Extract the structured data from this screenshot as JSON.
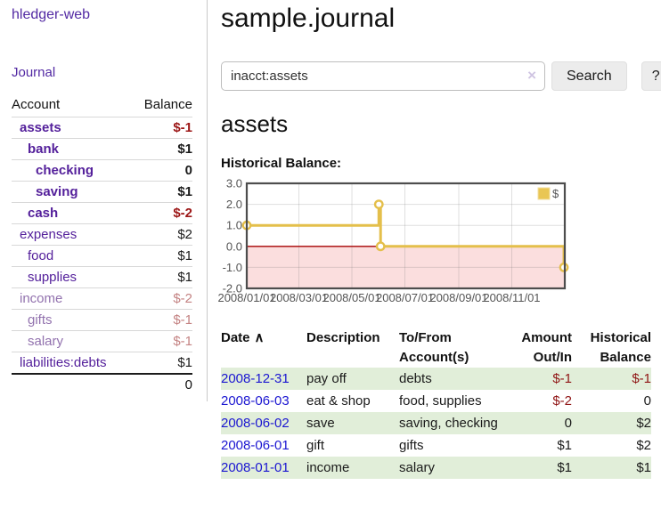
{
  "brand": "hledger-web",
  "nav": {
    "journal_label": "Journal"
  },
  "sidebar": {
    "header": {
      "account": "Account",
      "balance": "Balance"
    },
    "accounts": [
      {
        "name": "assets",
        "value": "$-1",
        "indent": 1,
        "bold": true,
        "negative": true,
        "muted": false,
        "unvisited": false
      },
      {
        "name": "bank",
        "value": "$1",
        "indent": 2,
        "bold": true,
        "negative": false,
        "muted": false,
        "unvisited": false
      },
      {
        "name": "checking",
        "value": "0",
        "indent": 3,
        "bold": true,
        "negative": false,
        "muted": false,
        "unvisited": false
      },
      {
        "name": "saving",
        "value": "$1",
        "indent": 3,
        "bold": true,
        "negative": false,
        "muted": false,
        "unvisited": false
      },
      {
        "name": "cash",
        "value": "$-2",
        "indent": 2,
        "bold": true,
        "negative": true,
        "muted": false,
        "unvisited": false
      },
      {
        "name": "expenses",
        "value": "$2",
        "indent": 1,
        "bold": false,
        "negative": false,
        "muted": false,
        "unvisited": false
      },
      {
        "name": "food",
        "value": "$1",
        "indent": 2,
        "bold": false,
        "negative": false,
        "muted": false,
        "unvisited": false
      },
      {
        "name": "supplies",
        "value": "$1",
        "indent": 2,
        "bold": false,
        "negative": false,
        "muted": false,
        "unvisited": false
      },
      {
        "name": "income",
        "value": "$-2",
        "indent": 1,
        "bold": false,
        "negative": true,
        "muted": true,
        "unvisited": false
      },
      {
        "name": "gifts",
        "value": "$-1",
        "indent": 2,
        "bold": false,
        "negative": true,
        "muted": true,
        "unvisited": false
      },
      {
        "name": "salary",
        "value": "$-1",
        "indent": 2,
        "bold": false,
        "negative": true,
        "muted": true,
        "unvisited": true
      },
      {
        "name": "liabilities:debts",
        "value": "$1",
        "indent": 1,
        "bold": false,
        "negative": false,
        "muted": false,
        "unvisited": false
      }
    ],
    "total": "0"
  },
  "header": {
    "title": "sample.journal"
  },
  "search": {
    "value": "inacct:assets",
    "clear_icon": "×",
    "search_button": "Search",
    "help_button": "?"
  },
  "main": {
    "account_title": "assets",
    "chart_label": "Historical Balance:"
  },
  "chart_data": {
    "type": "line",
    "steps": true,
    "series": [
      {
        "name": "$",
        "color": "#e4bf4b",
        "points": [
          [
            "2008-01-01",
            1
          ],
          [
            "2008-06-01",
            2
          ],
          [
            "2008-06-03",
            0
          ],
          [
            "2008-12-31",
            -1
          ]
        ]
      }
    ],
    "xlim": [
      "2008-01-01",
      "2009-01-01"
    ],
    "ylim": [
      -2,
      3
    ],
    "y_ticks": [
      3.0,
      2.0,
      1.0,
      0.0,
      -1.0,
      -2.0
    ],
    "x_ticks": [
      "2008/01/01",
      "2008/03/01",
      "2008/05/01",
      "2008/07/01",
      "2008/09/01",
      "2008/11/01"
    ],
    "grid": true,
    "legend_position": "top-right",
    "legend": [
      {
        "label": "$",
        "color": "#e9c654"
      }
    ],
    "negative_region_color": "#fbdede",
    "zero_line_color": "#a40000",
    "title": "",
    "xlabel": "",
    "ylabel": ""
  },
  "table": {
    "sort_icon": "∧",
    "headers": {
      "date": {
        "l1": "Date",
        "l2": ""
      },
      "description": {
        "l1": "Description",
        "l2": ""
      },
      "accounts": {
        "l1": "To/From",
        "l2": "Account(s)"
      },
      "amount": {
        "l1": "Amount",
        "l2": "Out/In"
      },
      "balance": {
        "l1": "Historical",
        "l2": "Balance"
      }
    },
    "rows": [
      {
        "date": "2008-12-31",
        "description": "pay off",
        "accounts": "debts",
        "amount": "$-1",
        "amount_negative": true,
        "balance": "$-1",
        "balance_negative": true
      },
      {
        "date": "2008-06-03",
        "description": "eat & shop",
        "accounts": "food, supplies",
        "amount": "$-2",
        "amount_negative": true,
        "balance": "0",
        "balance_negative": false
      },
      {
        "date": "2008-06-02",
        "description": "save",
        "accounts": "saving, checking",
        "amount": "0",
        "amount_negative": false,
        "balance": "$2",
        "balance_negative": false
      },
      {
        "date": "2008-06-01",
        "description": "gift",
        "accounts": "gifts",
        "amount": "$1",
        "amount_negative": false,
        "balance": "$2",
        "balance_negative": false
      },
      {
        "date": "2008-01-01",
        "description": "income",
        "accounts": "salary",
        "amount": "$1",
        "amount_negative": false,
        "balance": "$1",
        "balance_negative": false
      }
    ]
  }
}
